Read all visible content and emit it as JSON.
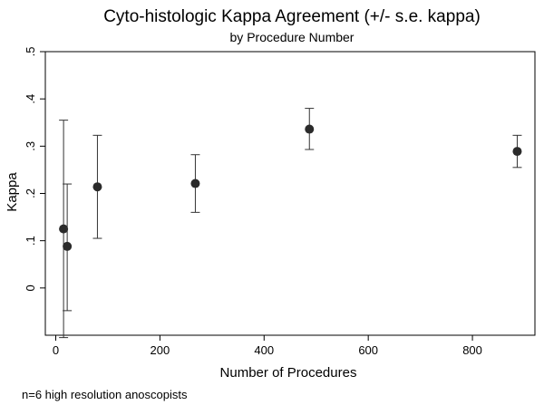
{
  "chart_data": {
    "type": "scatter",
    "title": "Cyto-histologic Kappa Agreement (+/- s.e. kappa)",
    "subtitle": "by Procedure Number",
    "xlabel": "Number of Procedures",
    "ylabel": "Kappa",
    "note": "n=6 high resolution anoscopists",
    "xlim": [
      -20,
      920
    ],
    "ylim": [
      -0.1,
      0.5
    ],
    "xticks": [
      0,
      200,
      400,
      600,
      800
    ],
    "xtick_labels": [
      "0",
      "200",
      "400",
      "600",
      "800"
    ],
    "yticks": [
      0,
      0.1,
      0.2,
      0.3,
      0.4,
      0.5
    ],
    "ytick_labels": [
      "0",
      ".1",
      ".2",
      ".3",
      ".4",
      ".5"
    ],
    "grid": false,
    "legend": "none",
    "marker_color": "#2b2b2b",
    "points": [
      {
        "x": 15,
        "y": 0.125,
        "lower": -0.105,
        "upper": 0.355
      },
      {
        "x": 22,
        "y": 0.088,
        "lower": -0.048,
        "upper": 0.22
      },
      {
        "x": 80,
        "y": 0.214,
        "lower": 0.105,
        "upper": 0.323
      },
      {
        "x": 268,
        "y": 0.221,
        "lower": 0.16,
        "upper": 0.282
      },
      {
        "x": 487,
        "y": 0.336,
        "lower": 0.293,
        "upper": 0.38
      },
      {
        "x": 886,
        "y": 0.289,
        "lower": 0.255,
        "upper": 0.323
      }
    ]
  }
}
